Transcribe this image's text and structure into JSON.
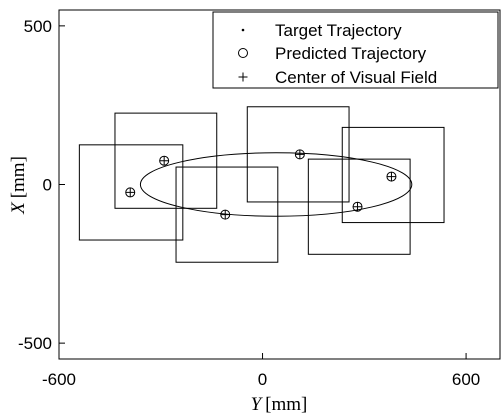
{
  "chart_data": {
    "type": "scatter",
    "xlabel_var": "Y",
    "xlabel_unit": "[mm]",
    "ylabel_var": "X",
    "ylabel_unit": "[mm]",
    "xlim": [
      -600,
      700
    ],
    "ylim": [
      -550,
      550
    ],
    "xticks": [
      {
        "value": -600,
        "label": "-600"
      },
      {
        "value": 0,
        "label": "0"
      },
      {
        "value": 600,
        "label": "600"
      }
    ],
    "yticks": [
      {
        "value": 500,
        "label": "500"
      },
      {
        "value": 0,
        "label": "0"
      },
      {
        "value": -500,
        "label": "-500"
      }
    ],
    "grid": false,
    "legend_position": "top-right",
    "legend": [
      {
        "label": "Target Trajectory",
        "marker": "dot"
      },
      {
        "label": "Predicted Trajectory",
        "marker": "circle"
      },
      {
        "label": "Center of Visual Field",
        "marker": "plus"
      }
    ],
    "target_trajectory": {
      "shape": "ellipse",
      "center": [
        40,
        0
      ],
      "semi_axis_y": 400,
      "semi_axis_x": 100
    },
    "predicted_trajectory": [
      {
        "y": -390,
        "x": -25
      },
      {
        "y": -290,
        "x": 75
      },
      {
        "y": -110,
        "x": -95
      },
      {
        "y": 110,
        "x": 95
      },
      {
        "y": 280,
        "x": -70
      },
      {
        "y": 380,
        "x": 25
      }
    ],
    "visual_field_centers": [
      {
        "y": -390,
        "x": -25
      },
      {
        "y": -290,
        "x": 75
      },
      {
        "y": -110,
        "x": -95
      },
      {
        "y": 110,
        "x": 95
      },
      {
        "y": 280,
        "x": -70
      },
      {
        "y": 380,
        "x": 25
      }
    ],
    "visual_field_boxes": [
      {
        "y_min": -540,
        "y_max": -235,
        "x_min": -175,
        "x_max": 125
      },
      {
        "y_min": -435,
        "y_max": -135,
        "x_min": -75,
        "x_max": 225
      },
      {
        "y_min": -255,
        "y_max": 45,
        "x_min": -245,
        "x_max": 55
      },
      {
        "y_min": -45,
        "y_max": 255,
        "x_min": -55,
        "x_max": 245
      },
      {
        "y_min": 135,
        "y_max": 435,
        "x_min": -220,
        "x_max": 80
      },
      {
        "y_min": 235,
        "y_max": 535,
        "x_min": -120,
        "x_max": 180
      }
    ]
  }
}
